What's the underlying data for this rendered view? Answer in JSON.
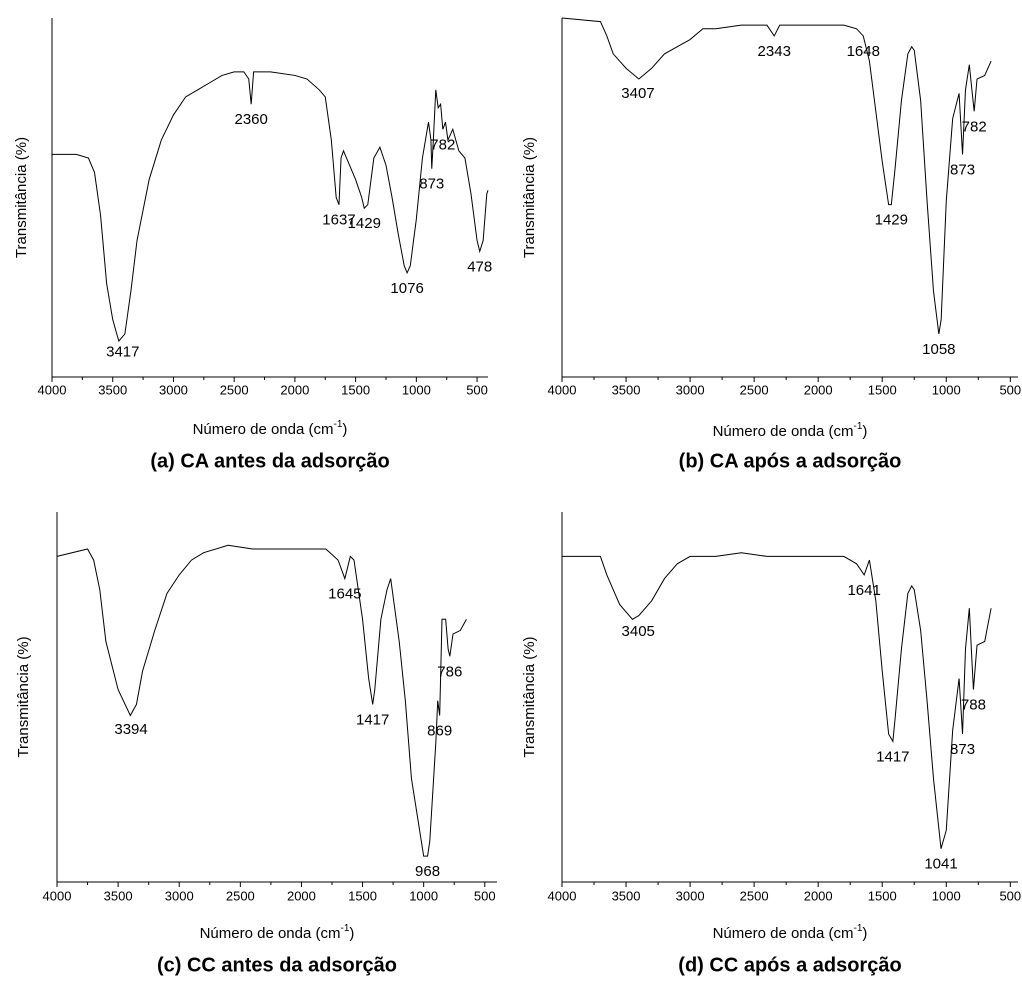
{
  "chart_data": [
    {
      "type": "line",
      "caption": "(a) CA antes da adsorção",
      "xlabel": [
        "Número de onda (cm",
        "-1",
        ")"
      ],
      "ylabel": "Transmitância (%)",
      "xlim": [
        4000,
        410
      ],
      "xticks": [
        4000,
        3500,
        3000,
        2500,
        2000,
        1500,
        1000,
        500
      ],
      "ylim": [
        0,
        100
      ],
      "series": [
        {
          "color": "#000000",
          "x": [
            4000,
            3800,
            3700,
            3650,
            3600,
            3550,
            3500,
            3450,
            3400,
            3350,
            3300,
            3200,
            3100,
            3000,
            2900,
            2800,
            2700,
            2600,
            2500,
            2420,
            2380,
            2360,
            2340,
            2200,
            2000,
            1900,
            1800,
            1750,
            1700,
            1660,
            1637,
            1620,
            1600,
            1550,
            1500,
            1450,
            1429,
            1400,
            1350,
            1300,
            1250,
            1200,
            1150,
            1100,
            1076,
            1050,
            1000,
            950,
            900,
            880,
            873,
            860,
            840,
            820,
            800,
            782,
            760,
            740,
            700,
            650,
            600,
            550,
            500,
            478,
            450,
            420,
            410
          ],
          "values": [
            62,
            62,
            61,
            57,
            45,
            26,
            16,
            10,
            12,
            24,
            38,
            55,
            66,
            73,
            78,
            80,
            82,
            84,
            85,
            85,
            83,
            76,
            85,
            85,
            84,
            83,
            80,
            78,
            66,
            50,
            48,
            61,
            63,
            59,
            55,
            50,
            47,
            48,
            61,
            64,
            59,
            50,
            40,
            31,
            29,
            31,
            44,
            61,
            71,
            66,
            58,
            66,
            80,
            75,
            76,
            69,
            71,
            66,
            69,
            63,
            61,
            51,
            38,
            35,
            38,
            51,
            52
          ]
        }
      ],
      "peaks": [
        3417,
        2360,
        1637,
        1429,
        1076,
        873,
        782,
        478
      ]
    },
    {
      "type": "line",
      "caption": "(b) CA após a adsorção",
      "xlabel": [
        "Número de onda (cm",
        "-1",
        ")"
      ],
      "ylabel": "Transmitância (%)",
      "xlim": [
        4000,
        440
      ],
      "xticks": [
        4000,
        3500,
        3000,
        2500,
        2000,
        1500,
        1000,
        500
      ],
      "ylim": [
        0,
        100
      ],
      "series": [
        {
          "color": "#000000",
          "x": [
            4000,
            3700,
            3650,
            3600,
            3500,
            3400,
            3300,
            3200,
            3100,
            3000,
            2900,
            2800,
            2600,
            2400,
            2343,
            2300,
            2000,
            1800,
            1700,
            1648,
            1600,
            1550,
            1500,
            1450,
            1429,
            1400,
            1350,
            1300,
            1270,
            1250,
            1200,
            1150,
            1100,
            1058,
            1040,
            1000,
            950,
            900,
            873,
            850,
            820,
            800,
            782,
            760,
            700,
            650
          ],
          "values": [
            100,
            99,
            95,
            90,
            86,
            83,
            86,
            90,
            92,
            94,
            97,
            97,
            98,
            98,
            95,
            98,
            98,
            98,
            97,
            95,
            88,
            74,
            60,
            48,
            48,
            58,
            77,
            90,
            92,
            91,
            77,
            49,
            24,
            12,
            16,
            49,
            72,
            79,
            62,
            80,
            87,
            80,
            74,
            83,
            84,
            88
          ]
        }
      ],
      "peaks": [
        3407,
        2343,
        1648,
        1429,
        1058,
        873,
        782
      ]
    },
    {
      "type": "line",
      "caption": "(c) CC antes da adsorção",
      "xlabel": [
        "Número de onda (cm",
        "-1",
        ")"
      ],
      "ylabel": "Transmitância (%)",
      "xlim": [
        4000,
        400
      ],
      "xticks": [
        4000,
        3500,
        3000,
        2500,
        2000,
        1500,
        1000,
        500
      ],
      "ylim": [
        0,
        100
      ],
      "series": [
        {
          "color": "#000000",
          "x": [
            4000,
            3750,
            3700,
            3650,
            3600,
            3500,
            3400,
            3350,
            3300,
            3200,
            3100,
            3000,
            2900,
            2800,
            2600,
            2400,
            2200,
            2000,
            1800,
            1700,
            1645,
            1600,
            1570,
            1500,
            1450,
            1417,
            1400,
            1350,
            1300,
            1270,
            1200,
            1150,
            1100,
            1000,
            968,
            950,
            900,
            885,
            869,
            850,
            820,
            800,
            786,
            760,
            700,
            650
          ],
          "values": [
            88,
            90,
            87,
            79,
            65,
            52,
            45,
            48,
            57,
            68,
            78,
            83,
            87,
            89,
            91,
            90,
            90,
            90,
            90,
            87,
            82,
            88,
            87,
            71,
            55,
            48,
            52,
            71,
            79,
            82,
            65,
            49,
            28,
            7,
            7,
            11,
            38,
            49,
            45,
            71,
            71,
            63,
            61,
            67,
            68,
            71
          ]
        }
      ],
      "peaks": [
        3394,
        1645,
        1417,
        968,
        869,
        786
      ]
    },
    {
      "type": "line",
      "caption": "(d) CC após a adsorção",
      "xlabel": [
        "Número de onda (cm",
        "-1",
        ")"
      ],
      "ylabel": "Transmitância (%)",
      "xlim": [
        4000,
        440
      ],
      "xticks": [
        4000,
        3500,
        3000,
        2500,
        2000,
        1500,
        1000,
        500
      ],
      "ylim": [
        0,
        100
      ],
      "series": [
        {
          "color": "#000000",
          "x": [
            4000,
            3700,
            3650,
            3550,
            3450,
            3400,
            3300,
            3200,
            3100,
            3000,
            2800,
            2600,
            2400,
            2200,
            2000,
            1800,
            1700,
            1641,
            1600,
            1550,
            1500,
            1450,
            1417,
            1400,
            1350,
            1300,
            1270,
            1250,
            1200,
            1150,
            1100,
            1041,
            1000,
            950,
            900,
            873,
            850,
            820,
            800,
            788,
            760,
            700,
            650
          ],
          "values": [
            88,
            88,
            83,
            75,
            71,
            72,
            76,
            82,
            86,
            88,
            88,
            89,
            88,
            88,
            88,
            88,
            86,
            83,
            87,
            76,
            57,
            40,
            38,
            44,
            63,
            78,
            80,
            79,
            68,
            49,
            28,
            9,
            14,
            41,
            55,
            40,
            63,
            74,
            60,
            52,
            64,
            65,
            74
          ]
        }
      ],
      "peaks": [
        3405,
        1641,
        1417,
        1041,
        873,
        788
      ]
    }
  ]
}
